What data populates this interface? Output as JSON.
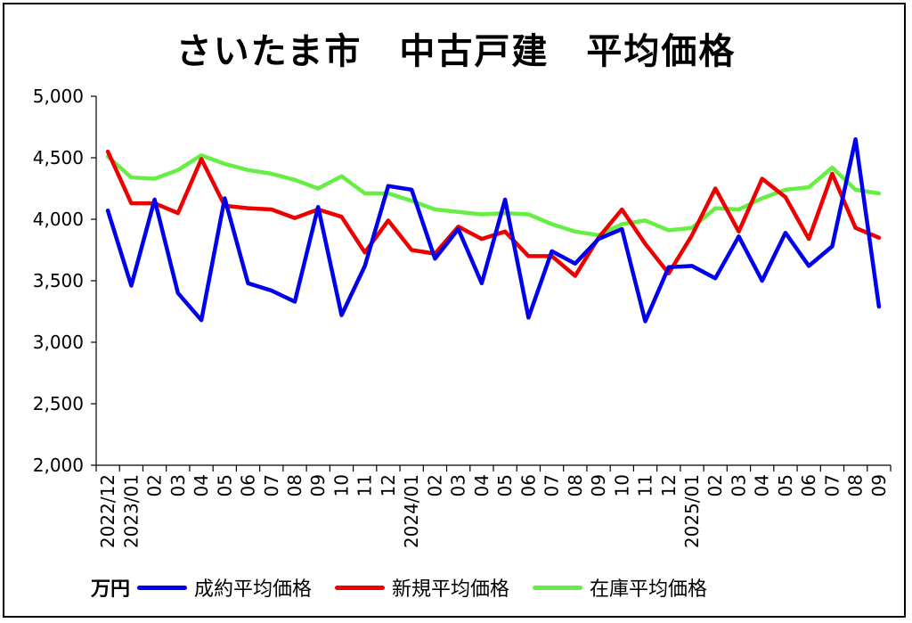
{
  "title": "さいたま市　中古戸建　平均価格",
  "unit_label": "万円",
  "chart_data": {
    "type": "line",
    "title": "さいたま市　中古戸建　平均価格",
    "ylim": [
      2000,
      5000
    ],
    "yticks": [
      2000,
      2500,
      3000,
      3500,
      4000,
      4500,
      5000
    ],
    "ytick_labels": [
      "2,000",
      "2,500",
      "3,000",
      "3,500",
      "4,000",
      "4,500",
      "5,000"
    ],
    "grid": false,
    "legend_position": "bottom",
    "categories": [
      "2022/12",
      "2023/01",
      "02",
      "03",
      "04",
      "05",
      "06",
      "07",
      "08",
      "09",
      "10",
      "11",
      "12",
      "2024/01",
      "02",
      "03",
      "04",
      "05",
      "06",
      "07",
      "08",
      "09",
      "10",
      "11",
      "12",
      "2025/01",
      "02",
      "03",
      "04",
      "05",
      "06",
      "07",
      "08",
      "09"
    ],
    "series": [
      {
        "name": "成約平均価格",
        "color": "#0000ee",
        "values": [
          4070,
          3460,
          4160,
          3400,
          3180,
          4170,
          3480,
          3420,
          3330,
          4100,
          3220,
          3620,
          4270,
          4240,
          3680,
          3920,
          3480,
          4160,
          3200,
          3740,
          3640,
          3840,
          3920,
          3170,
          3610,
          3620,
          3520,
          3860,
          3500,
          3890,
          3620,
          3780,
          4650,
          3290
        ]
      },
      {
        "name": "新規平均価格",
        "color": "#ee0000",
        "values": [
          4550,
          4130,
          4130,
          4050,
          4490,
          4110,
          4090,
          4080,
          4010,
          4080,
          4020,
          3730,
          3990,
          3750,
          3720,
          3940,
          3840,
          3900,
          3700,
          3700,
          3540,
          3850,
          4080,
          3800,
          3560,
          3870,
          4250,
          3900,
          4330,
          4180,
          3840,
          4370,
          3930,
          3850
        ]
      },
      {
        "name": "在庫平均価格",
        "color": "#66ee44",
        "values": [
          4510,
          4340,
          4330,
          4400,
          4520,
          4450,
          4400,
          4370,
          4320,
          4250,
          4350,
          4210,
          4210,
          4150,
          4080,
          4060,
          4040,
          4050,
          4040,
          3960,
          3900,
          3870,
          3960,
          3990,
          3910,
          3930,
          4090,
          4080,
          4170,
          4240,
          4260,
          4420,
          4240,
          4210
        ]
      }
    ]
  }
}
